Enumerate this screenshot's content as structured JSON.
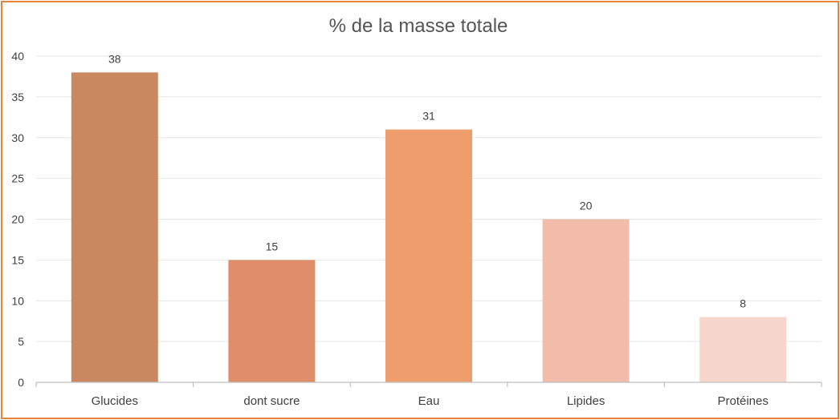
{
  "chart_data": {
    "type": "bar",
    "title": "% de la masse totale",
    "categories": [
      "Glucides",
      "dont sucre",
      "Eau",
      "Lipides",
      "Protéines"
    ],
    "values": [
      38,
      15,
      31,
      20,
      8
    ],
    "colors": [
      "#c98860",
      "#de8f6a",
      "#f09d6e",
      "#f2bcaa",
      "#f6d5cb"
    ],
    "data_labels": [
      "38",
      "15",
      "31",
      "20",
      "8"
    ],
    "yticks": [
      "0",
      "5",
      "10",
      "15",
      "20",
      "25",
      "30",
      "35",
      "40"
    ],
    "ylim": [
      0,
      40
    ],
    "grid": true,
    "legend": "none"
  }
}
